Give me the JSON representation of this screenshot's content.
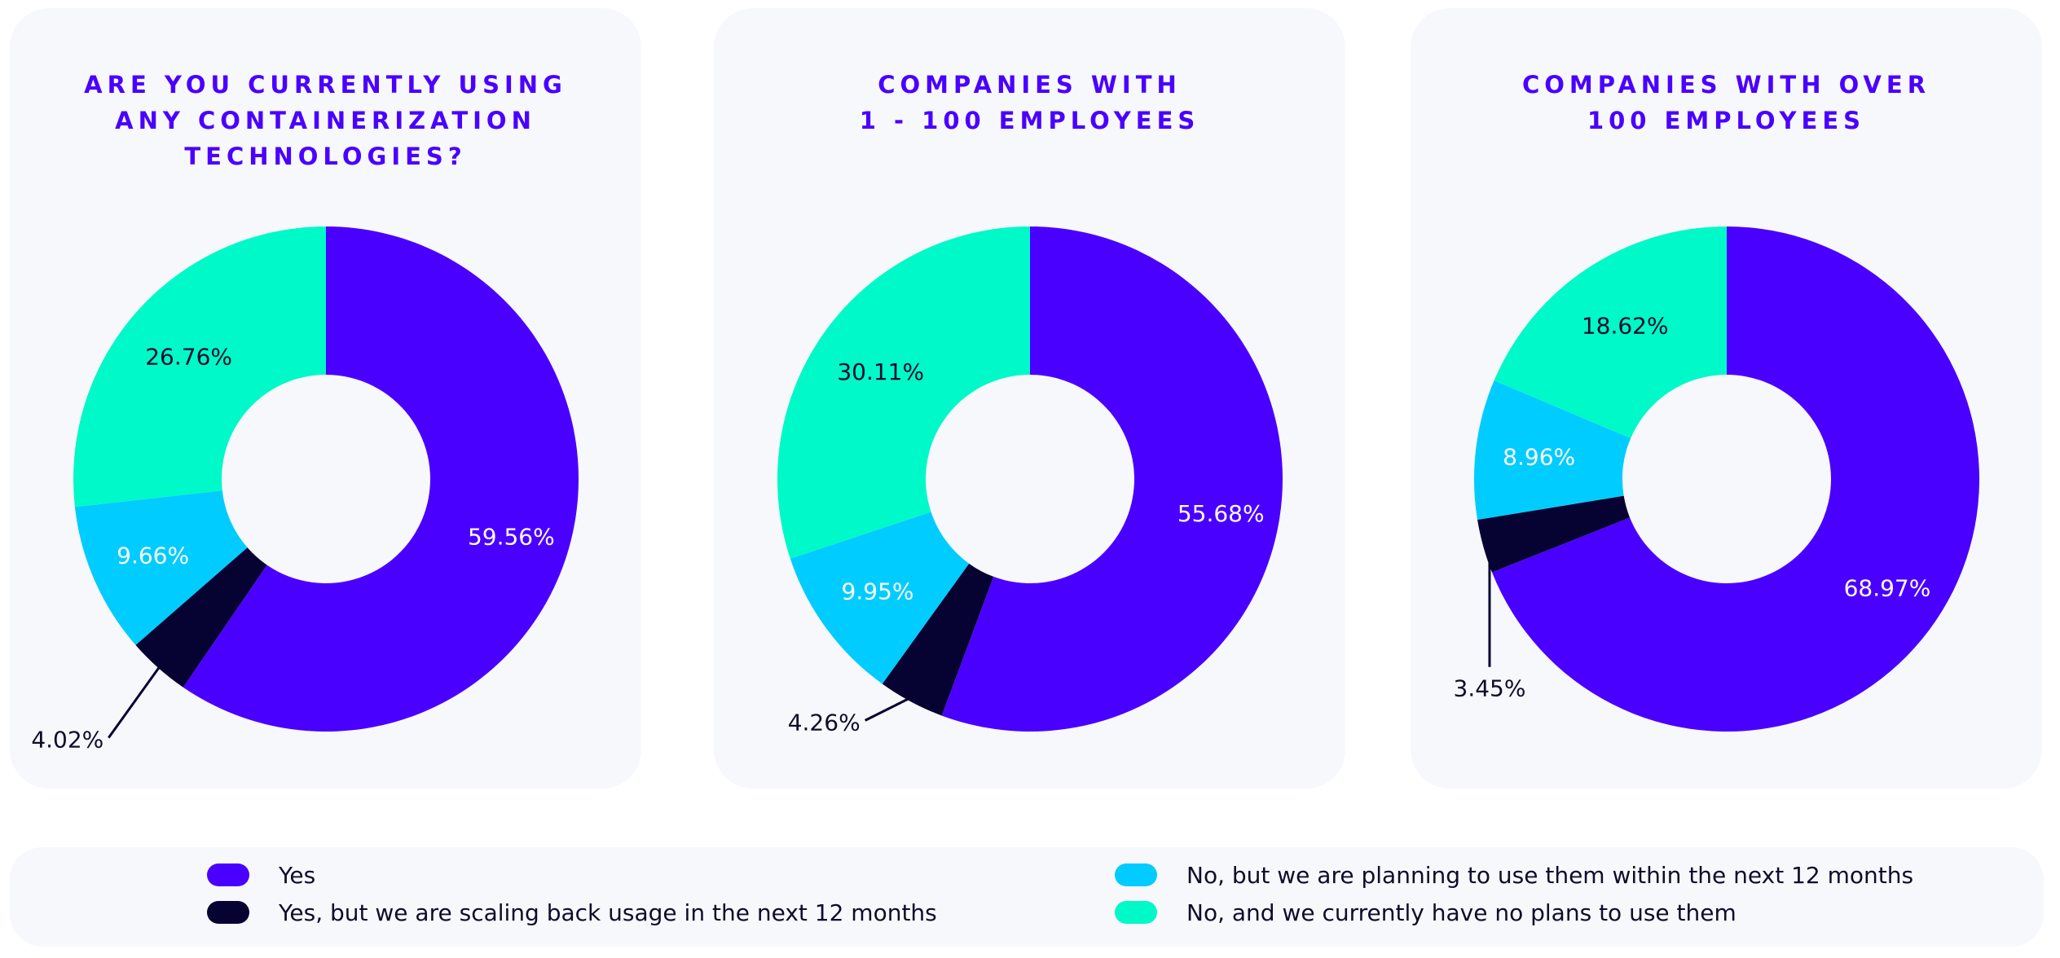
{
  "colors": {
    "yes": "#4a00ff",
    "scaling_back": "#060333",
    "planning": "#00ccff",
    "no_plans": "#00f9c8",
    "panel_bg": "#f7f8fc",
    "title": "#4a00ff"
  },
  "chart_data": [
    {
      "type": "pie",
      "donut": true,
      "title": "ARE YOU CURRENTLY USING\nANY CONTAINERIZATION\nTECHNOLOGIES?",
      "slices": [
        {
          "series": "yes",
          "value": 59.56,
          "label": "59.56%"
        },
        {
          "series": "scaling_back",
          "value": 4.02,
          "label": "4.02%"
        },
        {
          "series": "planning",
          "value": 9.66,
          "label": "9.66%"
        },
        {
          "series": "no_plans",
          "value": 26.76,
          "label": "26.76%"
        }
      ]
    },
    {
      "type": "pie",
      "donut": true,
      "title": "COMPANIES WITH\n1 - 100 EMPLOYEES",
      "slices": [
        {
          "series": "yes",
          "value": 55.68,
          "label": "55.68%"
        },
        {
          "series": "scaling_back",
          "value": 4.26,
          "label": "4.26%"
        },
        {
          "series": "planning",
          "value": 9.95,
          "label": "9.95%"
        },
        {
          "series": "no_plans",
          "value": 30.11,
          "label": "30.11%"
        }
      ]
    },
    {
      "type": "pie",
      "donut": true,
      "title": "COMPANIES WITH OVER\n100 EMPLOYEES",
      "slices": [
        {
          "series": "yes",
          "value": 68.97,
          "label": "68.97%"
        },
        {
          "series": "scaling_back",
          "value": 3.45,
          "label": "3.45%"
        },
        {
          "series": "planning",
          "value": 8.96,
          "label": "8.96%"
        },
        {
          "series": "no_plans",
          "value": 18.62,
          "label": "18.62%"
        }
      ]
    }
  ],
  "legend": [
    {
      "series": "yes",
      "label": "Yes"
    },
    {
      "series": "scaling_back",
      "label": "Yes, but we are scaling back usage in the next 12 months"
    },
    {
      "series": "planning",
      "label": "No, but we are planning to use them within the next 12 months"
    },
    {
      "series": "no_plans",
      "label": "No, and we currently have no plans to use them"
    }
  ]
}
